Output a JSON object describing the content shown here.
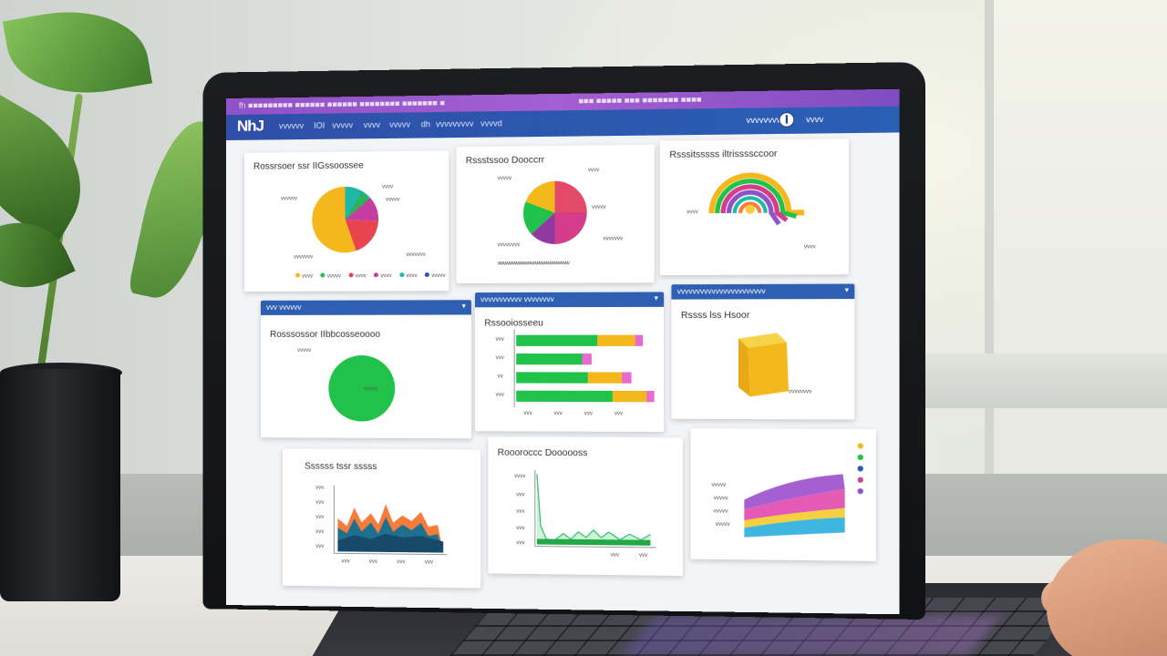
{
  "browser": {
    "tab_text": "fh ■■■■■■■■■ ■■■■■■ ■■■■■■ ■■■■■■■■ ■■■■■■■ ■",
    "tab_text_right": "■■■ ■■■■■ ■■■ ■■■■■■■ ■■■■"
  },
  "nav": {
    "logo": "NhJ",
    "items": [
      "vvvvvv",
      "IOI",
      "vvvvv",
      "vvvv",
      "vvvvv",
      "dh",
      "vvvvvvvvv",
      "vvvvd"
    ],
    "user_label": "vvvvvvvv",
    "right_label": "vvvv"
  },
  "cards": {
    "pie1": {
      "title": "Rossrsoer ssr IIGssoossee",
      "labels": [
        "vvvvvv",
        "vvvv",
        "vvvvv",
        "vvvvvvv",
        "vvvvvvv"
      ],
      "legend": [
        "vvvv",
        "vvvvv",
        "vvvv",
        "vvvv",
        "vvvv",
        "vvvvv"
      ]
    },
    "pie2": {
      "title": "Rssstssoo Dooccrr",
      "labels": [
        "vvvvv",
        "vvvv",
        "vvvvv",
        "vvvvvvv",
        "vvvvvvvv"
      ],
      "footer": "vvvvvvvvvvvvvvvvvvvvvvvvvvvvvvvvvvvvvv"
    },
    "spiral": {
      "title": "Rsssitsssss iltrissssccoor",
      "labels": [
        "vvvv",
        "vvvv"
      ]
    },
    "green_pie": {
      "header": "vvv vvvvvv",
      "title": "Rosssossor IIbbcosseoooo",
      "labels": [
        "vvvvv",
        "vvvvv"
      ]
    },
    "bars": {
      "header": "vvvvvvvvvvv vvvvvvvv",
      "title": "Rssooiosseeu",
      "ticks": [
        "vvv",
        "vvv",
        "vv",
        "vvv",
        "vvv",
        "vvv",
        "vvv",
        "vvv"
      ]
    },
    "cube": {
      "header": "vvvvvvvvvvvvvvvvvvvvvvv",
      "title": "Rssss lss Hsoor",
      "labels": [
        "vvvvvvvv"
      ]
    },
    "area": {
      "title": "Ssssss tssr sssss",
      "ticks": [
        "vvv",
        "vvv",
        "vvv",
        "vvv",
        "vvv",
        "vvv",
        "vvv",
        "vvv",
        "vvv"
      ]
    },
    "line": {
      "title": "Roooroccc Doooooss",
      "ticks": [
        "vvvv",
        "vvv",
        "vvv",
        "vvv",
        "vvv",
        "vvv",
        "vvv"
      ]
    },
    "stacked": {
      "labels": [
        "vvvvv",
        "vvvvv",
        "vvvvv",
        "vvvvv"
      ]
    }
  },
  "colors": {
    "purple_bar": "#9b57cc",
    "nav_blue": "#2f57ad",
    "yellow": "#f4b81c",
    "teal": "#1fb8a8",
    "red": "#e8434f",
    "green": "#21c24a",
    "magenta": "#d63c8c",
    "orange": "#f57c3a",
    "navy": "#1f4f77"
  }
}
